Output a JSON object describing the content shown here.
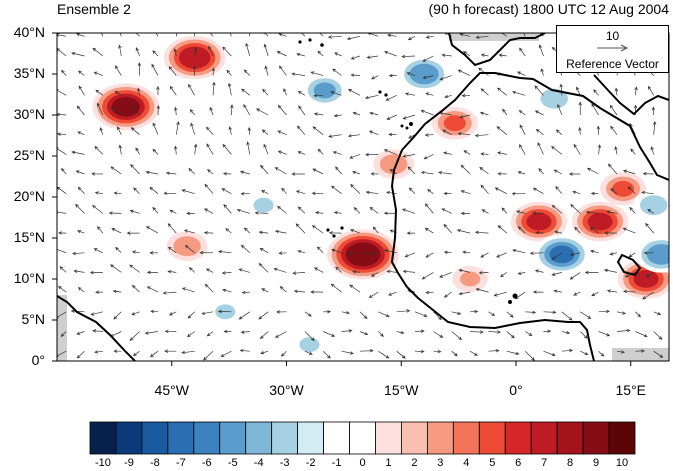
{
  "map": {
    "title_left": "Ensemble 2",
    "title_right": "(90 h forecast) 1800 UTC 12 Aug 2004",
    "lat_labels": [
      "40°N",
      "35°N",
      "30°N",
      "25°N",
      "20°N",
      "15°N",
      "10°N",
      "5°N",
      "0°"
    ],
    "lon_labels": [
      "45°W",
      "30°W",
      "15°W",
      "0°",
      "15°E"
    ],
    "extent": {
      "lon": [
        -60,
        20
      ],
      "lat": [
        0,
        40
      ]
    },
    "lat_ticks": [
      40,
      35,
      30,
      25,
      20,
      15,
      10,
      5,
      0
    ],
    "lon_ticks": [
      -45,
      -30,
      -15,
      0,
      15
    ],
    "reference_vector": {
      "magnitude": "10",
      "label": "Reference Vector"
    },
    "colorbar": {
      "labels": [
        "-10",
        "-9",
        "-8",
        "-7",
        "-6",
        "-5",
        "-4",
        "-3",
        "-2",
        "-1",
        "0",
        "1",
        "2",
        "3",
        "4",
        "5",
        "6",
        "7",
        "8",
        "9",
        "10"
      ],
      "colors": [
        "#08224d",
        "#0b3a7a",
        "#1a5aa0",
        "#2b6fb2",
        "#3b83c0",
        "#5a9dcd",
        "#7fb7d9",
        "#a6d1e3",
        "#d3ebf3",
        "#ffffff",
        "#ffffff",
        "#fde0dd",
        "#f9bfb0",
        "#f69a82",
        "#f47459",
        "#ef4a35",
        "#d7262a",
        "#bf1b24",
        "#a5141c",
        "#860d15",
        "#5c0509"
      ]
    },
    "anomalies": [
      {
        "lon": -42,
        "lat": 37,
        "v": 8
      },
      {
        "lon": -51,
        "lat": 31,
        "v": 9
      },
      {
        "lon": -20,
        "lat": 13,
        "v": 10
      },
      {
        "lon": -43,
        "lat": 14,
        "v": 4
      },
      {
        "lon": -8,
        "lat": 29,
        "v": 5
      },
      {
        "lon": 3,
        "lat": 17,
        "v": 7
      },
      {
        "lon": 11,
        "lat": 17,
        "v": 7
      },
      {
        "lon": 14,
        "lat": 21,
        "v": 5
      },
      {
        "lon": 17,
        "lat": 10,
        "v": 7
      },
      {
        "lon": -16,
        "lat": 24,
        "v": 4
      },
      {
        "lon": -6,
        "lat": 10,
        "v": 3
      },
      {
        "lon": -25,
        "lat": 33,
        "v": -5
      },
      {
        "lon": -12,
        "lat": 35,
        "v": -6
      },
      {
        "lon": 5,
        "lat": 32,
        "v": -4
      },
      {
        "lon": 6,
        "lat": 13,
        "v": -7
      },
      {
        "lon": 19,
        "lat": 13,
        "v": -6
      },
      {
        "lon": 18,
        "lat": 19,
        "v": -4
      },
      {
        "lon": -33,
        "lat": 19,
        "v": -3
      },
      {
        "lon": -38,
        "lat": 6,
        "v": -3
      },
      {
        "lon": -48,
        "lat": 24,
        "v": -2
      },
      {
        "lon": -52,
        "lat": 10,
        "v": -2
      },
      {
        "lon": -27,
        "lat": 2,
        "v": -3
      }
    ]
  }
}
